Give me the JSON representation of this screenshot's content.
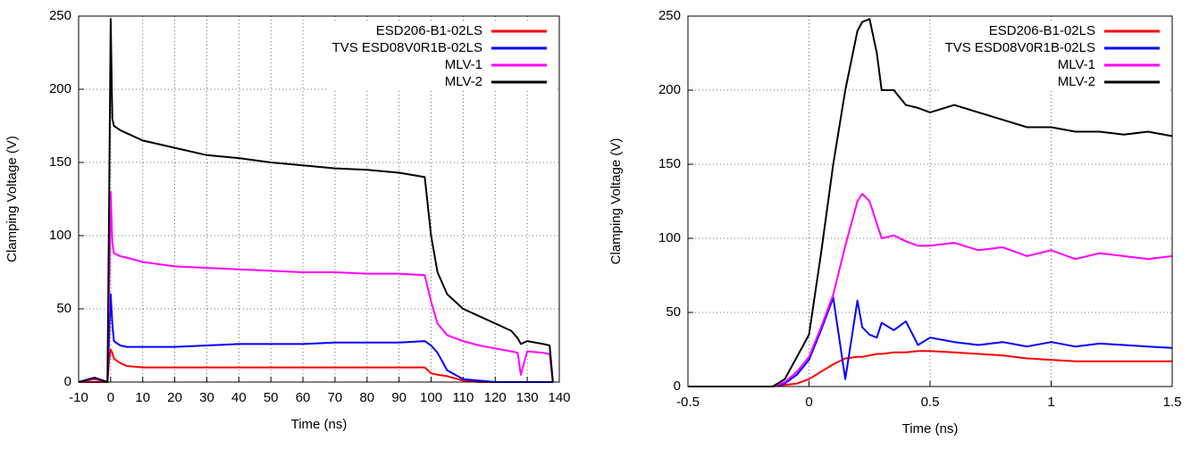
{
  "chart_data": [
    {
      "type": "line",
      "xlabel": "Time (ns)",
      "ylabel": "Clamping Voltage (V)",
      "x": [
        -10,
        -5,
        -1,
        -0.5,
        0,
        0.5,
        1,
        3,
        5,
        10,
        20,
        30,
        40,
        50,
        60,
        70,
        80,
        90,
        98,
        100,
        102,
        105,
        110,
        115,
        120,
        125,
        127,
        128,
        130,
        135,
        137,
        138
      ],
      "series": [
        {
          "name": "ESD206-B1-02LS",
          "color": "#ff0000",
          "values": [
            0,
            0,
            0,
            15,
            22,
            20,
            16,
            13,
            11,
            10,
            10,
            10,
            10,
            10,
            10,
            10,
            10,
            10,
            10,
            6,
            5,
            4,
            1,
            0,
            0,
            0,
            0,
            0,
            0,
            0,
            0,
            0
          ]
        },
        {
          "name": "TVS ESD08V0R1B-02LS",
          "color": "#0000ff",
          "values": [
            0,
            2,
            0,
            30,
            60,
            40,
            28,
            25,
            24,
            24,
            24,
            25,
            26,
            26,
            26,
            27,
            27,
            27,
            28,
            25,
            20,
            8,
            2,
            1,
            0,
            0,
            0,
            0,
            0,
            0,
            0,
            0
          ]
        },
        {
          "name": "MLV-1",
          "color": "#ff00ff",
          "values": [
            0,
            2,
            0,
            60,
            130,
            95,
            88,
            86,
            85,
            82,
            79,
            78,
            77,
            76,
            75,
            75,
            74,
            74,
            73,
            55,
            40,
            32,
            28,
            25,
            23,
            21,
            20,
            5,
            21,
            20,
            19,
            0
          ]
        },
        {
          "name": "MLV-2",
          "color": "#000000",
          "values": [
            0,
            3,
            0,
            120,
            248,
            180,
            175,
            172,
            170,
            165,
            160,
            155,
            153,
            150,
            148,
            146,
            145,
            143,
            140,
            100,
            75,
            60,
            50,
            45,
            40,
            35,
            30,
            26,
            28,
            26,
            25,
            0
          ]
        }
      ],
      "xlim": [
        -10,
        140
      ],
      "xticks": [
        -10,
        0,
        10,
        20,
        30,
        40,
        50,
        60,
        70,
        80,
        90,
        100,
        110,
        120,
        130,
        140
      ],
      "ylim": [
        0,
        250
      ],
      "yticks": [
        0,
        50,
        100,
        150,
        200,
        250
      ],
      "grid": true,
      "legend": "top-right"
    },
    {
      "type": "line",
      "xlabel": "Time (ns)",
      "ylabel": "Clamping Voltage (V)",
      "x": [
        -0.5,
        -0.45,
        -0.4,
        -0.3,
        -0.2,
        -0.15,
        -0.1,
        -0.05,
        0,
        0.05,
        0.1,
        0.15,
        0.2,
        0.22,
        0.25,
        0.28,
        0.3,
        0.35,
        0.4,
        0.45,
        0.5,
        0.6,
        0.7,
        0.8,
        0.9,
        1.0,
        1.1,
        1.2,
        1.3,
        1.4,
        1.5
      ],
      "series": [
        {
          "name": "ESD206-B1-02LS",
          "color": "#ff0000",
          "values": [
            0,
            0,
            0,
            0,
            0,
            0,
            1,
            2,
            5,
            10,
            15,
            19,
            20,
            20,
            21,
            22,
            22,
            23,
            23,
            24,
            24,
            23,
            22,
            21,
            19,
            18,
            17,
            17,
            17,
            17,
            17
          ]
        },
        {
          "name": "TVS ESD08V0R1B-02LS",
          "color": "#0000ff",
          "values": [
            0,
            0,
            0,
            0,
            0,
            0,
            2,
            8,
            18,
            38,
            60,
            5,
            58,
            40,
            35,
            33,
            43,
            38,
            44,
            28,
            33,
            30,
            28,
            30,
            27,
            30,
            27,
            29,
            28,
            27,
            26
          ]
        },
        {
          "name": "MLV-1",
          "color": "#ff00ff",
          "values": [
            0,
            0,
            0,
            0,
            0,
            0,
            3,
            10,
            20,
            40,
            62,
            95,
            125,
            130,
            125,
            110,
            100,
            102,
            98,
            95,
            95,
            97,
            92,
            94,
            88,
            92,
            86,
            90,
            88,
            86,
            88
          ]
        },
        {
          "name": "MLV-2",
          "color": "#000000",
          "values": [
            0,
            0,
            0,
            0,
            0,
            0,
            5,
            20,
            35,
            90,
            150,
            200,
            240,
            246,
            248,
            225,
            200,
            200,
            190,
            188,
            185,
            190,
            185,
            180,
            175,
            175,
            172,
            172,
            170,
            172,
            169
          ]
        }
      ],
      "xlim": [
        -0.5,
        1.5
      ],
      "xticks": [
        -0.5,
        0,
        0.5,
        1,
        1.5
      ],
      "ylim": [
        0,
        250
      ],
      "yticks": [
        0,
        50,
        100,
        150,
        200,
        250
      ],
      "grid": true,
      "legend": "top-right"
    }
  ]
}
